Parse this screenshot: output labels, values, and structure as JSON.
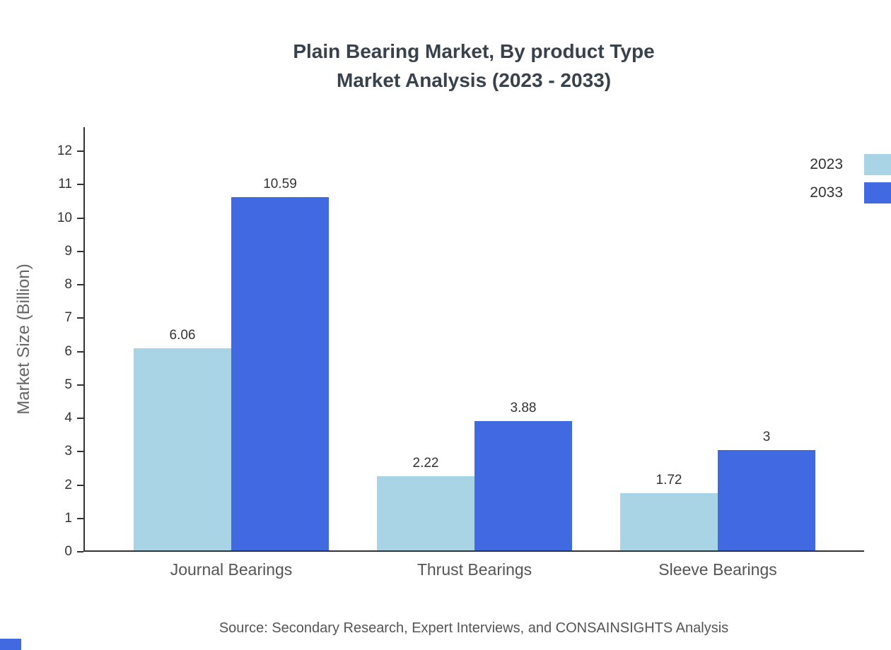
{
  "title": {
    "line1": "Plain Bearing Market, By product Type",
    "line2": "Market Analysis (2023 - 2033)"
  },
  "source": "Source: Secondary Research, Expert Interviews, and CONSAINSIGHTS Analysis",
  "colors": {
    "series_2023": "#a9d4e5",
    "series_2033": "#4169e1",
    "axis": "#333333",
    "title_text": "#37424c",
    "category_text": "#555555"
  },
  "chart_data": {
    "type": "bar",
    "categories": [
      "Journal Bearings",
      "Thrust Bearings",
      "Sleeve Bearings"
    ],
    "series": [
      {
        "name": "2023",
        "color": "#a9d4e5",
        "values": [
          6.06,
          2.22,
          1.72
        ]
      },
      {
        "name": "2033",
        "color": "#4169e1",
        "values": [
          10.59,
          3.88,
          3
        ]
      }
    ],
    "title": "Plain Bearing Market, By product Type Market Analysis (2023 - 2033)",
    "xlabel": "",
    "ylabel": "Market Size (Billion)",
    "ylim": [
      0,
      12
    ],
    "yticks": [
      0,
      1,
      2,
      3,
      4,
      5,
      6,
      7,
      8,
      9,
      10,
      11,
      12
    ],
    "grid": false,
    "legend_position": "top-right"
  }
}
